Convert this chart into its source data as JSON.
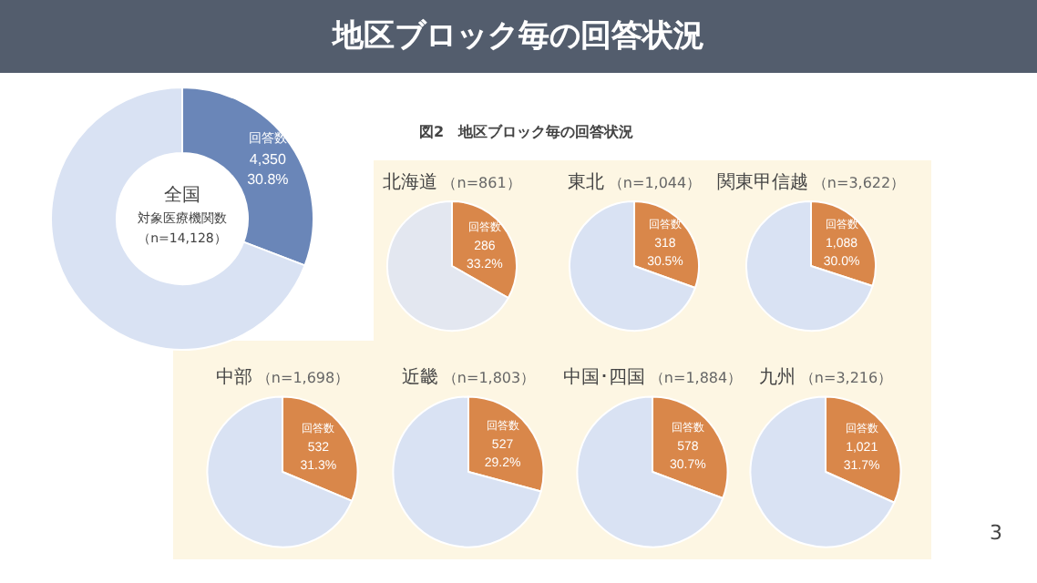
{
  "chart_data": [
    {
      "type": "donut",
      "title": "地区ブロック毎の回答状況",
      "categories": [
        "回答数",
        null
      ],
      "values": [
        30.8,
        69.2
      ],
      "colors": [
        "#6a86b8",
        "#d9e2f3"
      ],
      "value_labels": [
        "4,350\n30.8%",
        null
      ],
      "annotations": [
        "全国",
        "対象医療機関数",
        "（n=14,128）"
      ]
    },
    {
      "type": "pie",
      "title": "北海道",
      "subtitle": "（n=861）",
      "categories": [
        "回答数",
        null
      ],
      "values": [
        33.2,
        66.8
      ],
      "colors": [
        "#d9874a",
        "#e3e7f0"
      ],
      "value_labels": [
        "286\n33.2%",
        null
      ],
      "annotations": [
        "図2　地区ブロック毎の回答状況"
      ]
    },
    {
      "type": "pie",
      "title": "東北",
      "subtitle": "（n=1,044）",
      "categories": [
        "回答数",
        null
      ],
      "values": [
        30.5,
        69.5
      ],
      "colors": [
        "#d9874a",
        "#d9e2f3"
      ],
      "value_labels": [
        "318\n30.5%",
        null
      ]
    },
    {
      "type": "pie",
      "title": "関東甲信越",
      "subtitle": "（n=3,622）",
      "categories": [
        "回答数",
        null
      ],
      "values": [
        30.0,
        70.0
      ],
      "colors": [
        "#d9874a",
        "#d9e2f3"
      ],
      "value_labels": [
        "1,088\n30.0%",
        null
      ]
    },
    {
      "type": "pie",
      "title": "中部",
      "subtitle": "（n=1,698）",
      "categories": [
        "回答数",
        null
      ],
      "values": [
        31.3,
        68.7
      ],
      "colors": [
        "#d9874a",
        "#d9e2f3"
      ],
      "value_labels": [
        "532\n31.3%",
        null
      ]
    },
    {
      "type": "pie",
      "title": "近畿",
      "subtitle": "（n=1,803）",
      "categories": [
        "回答数",
        null
      ],
      "values": [
        29.2,
        70.8
      ],
      "colors": [
        "#d9874a",
        "#d9e2f3"
      ],
      "value_labels": [
        "527\n29.2%",
        null
      ]
    },
    {
      "type": "pie",
      "title": "中国･四国",
      "subtitle": "（n=1,884）",
      "categories": [
        "回答数",
        null
      ],
      "values": [
        30.7,
        69.3
      ],
      "colors": [
        "#d9874a",
        "#d9e2f3"
      ],
      "value_labels": [
        "578\n30.7%",
        null
      ]
    },
    {
      "type": "pie",
      "title": "九州",
      "subtitle": "（n=3,216）",
      "categories": [
        "回答数",
        null
      ],
      "values": [
        31.7,
        68.3
      ],
      "colors": [
        "#d9874a",
        "#d9e2f3"
      ],
      "value_labels": [
        "1,021\n31.7%",
        null
      ],
      "annotations": [
        "3"
      ]
    }
  ]
}
